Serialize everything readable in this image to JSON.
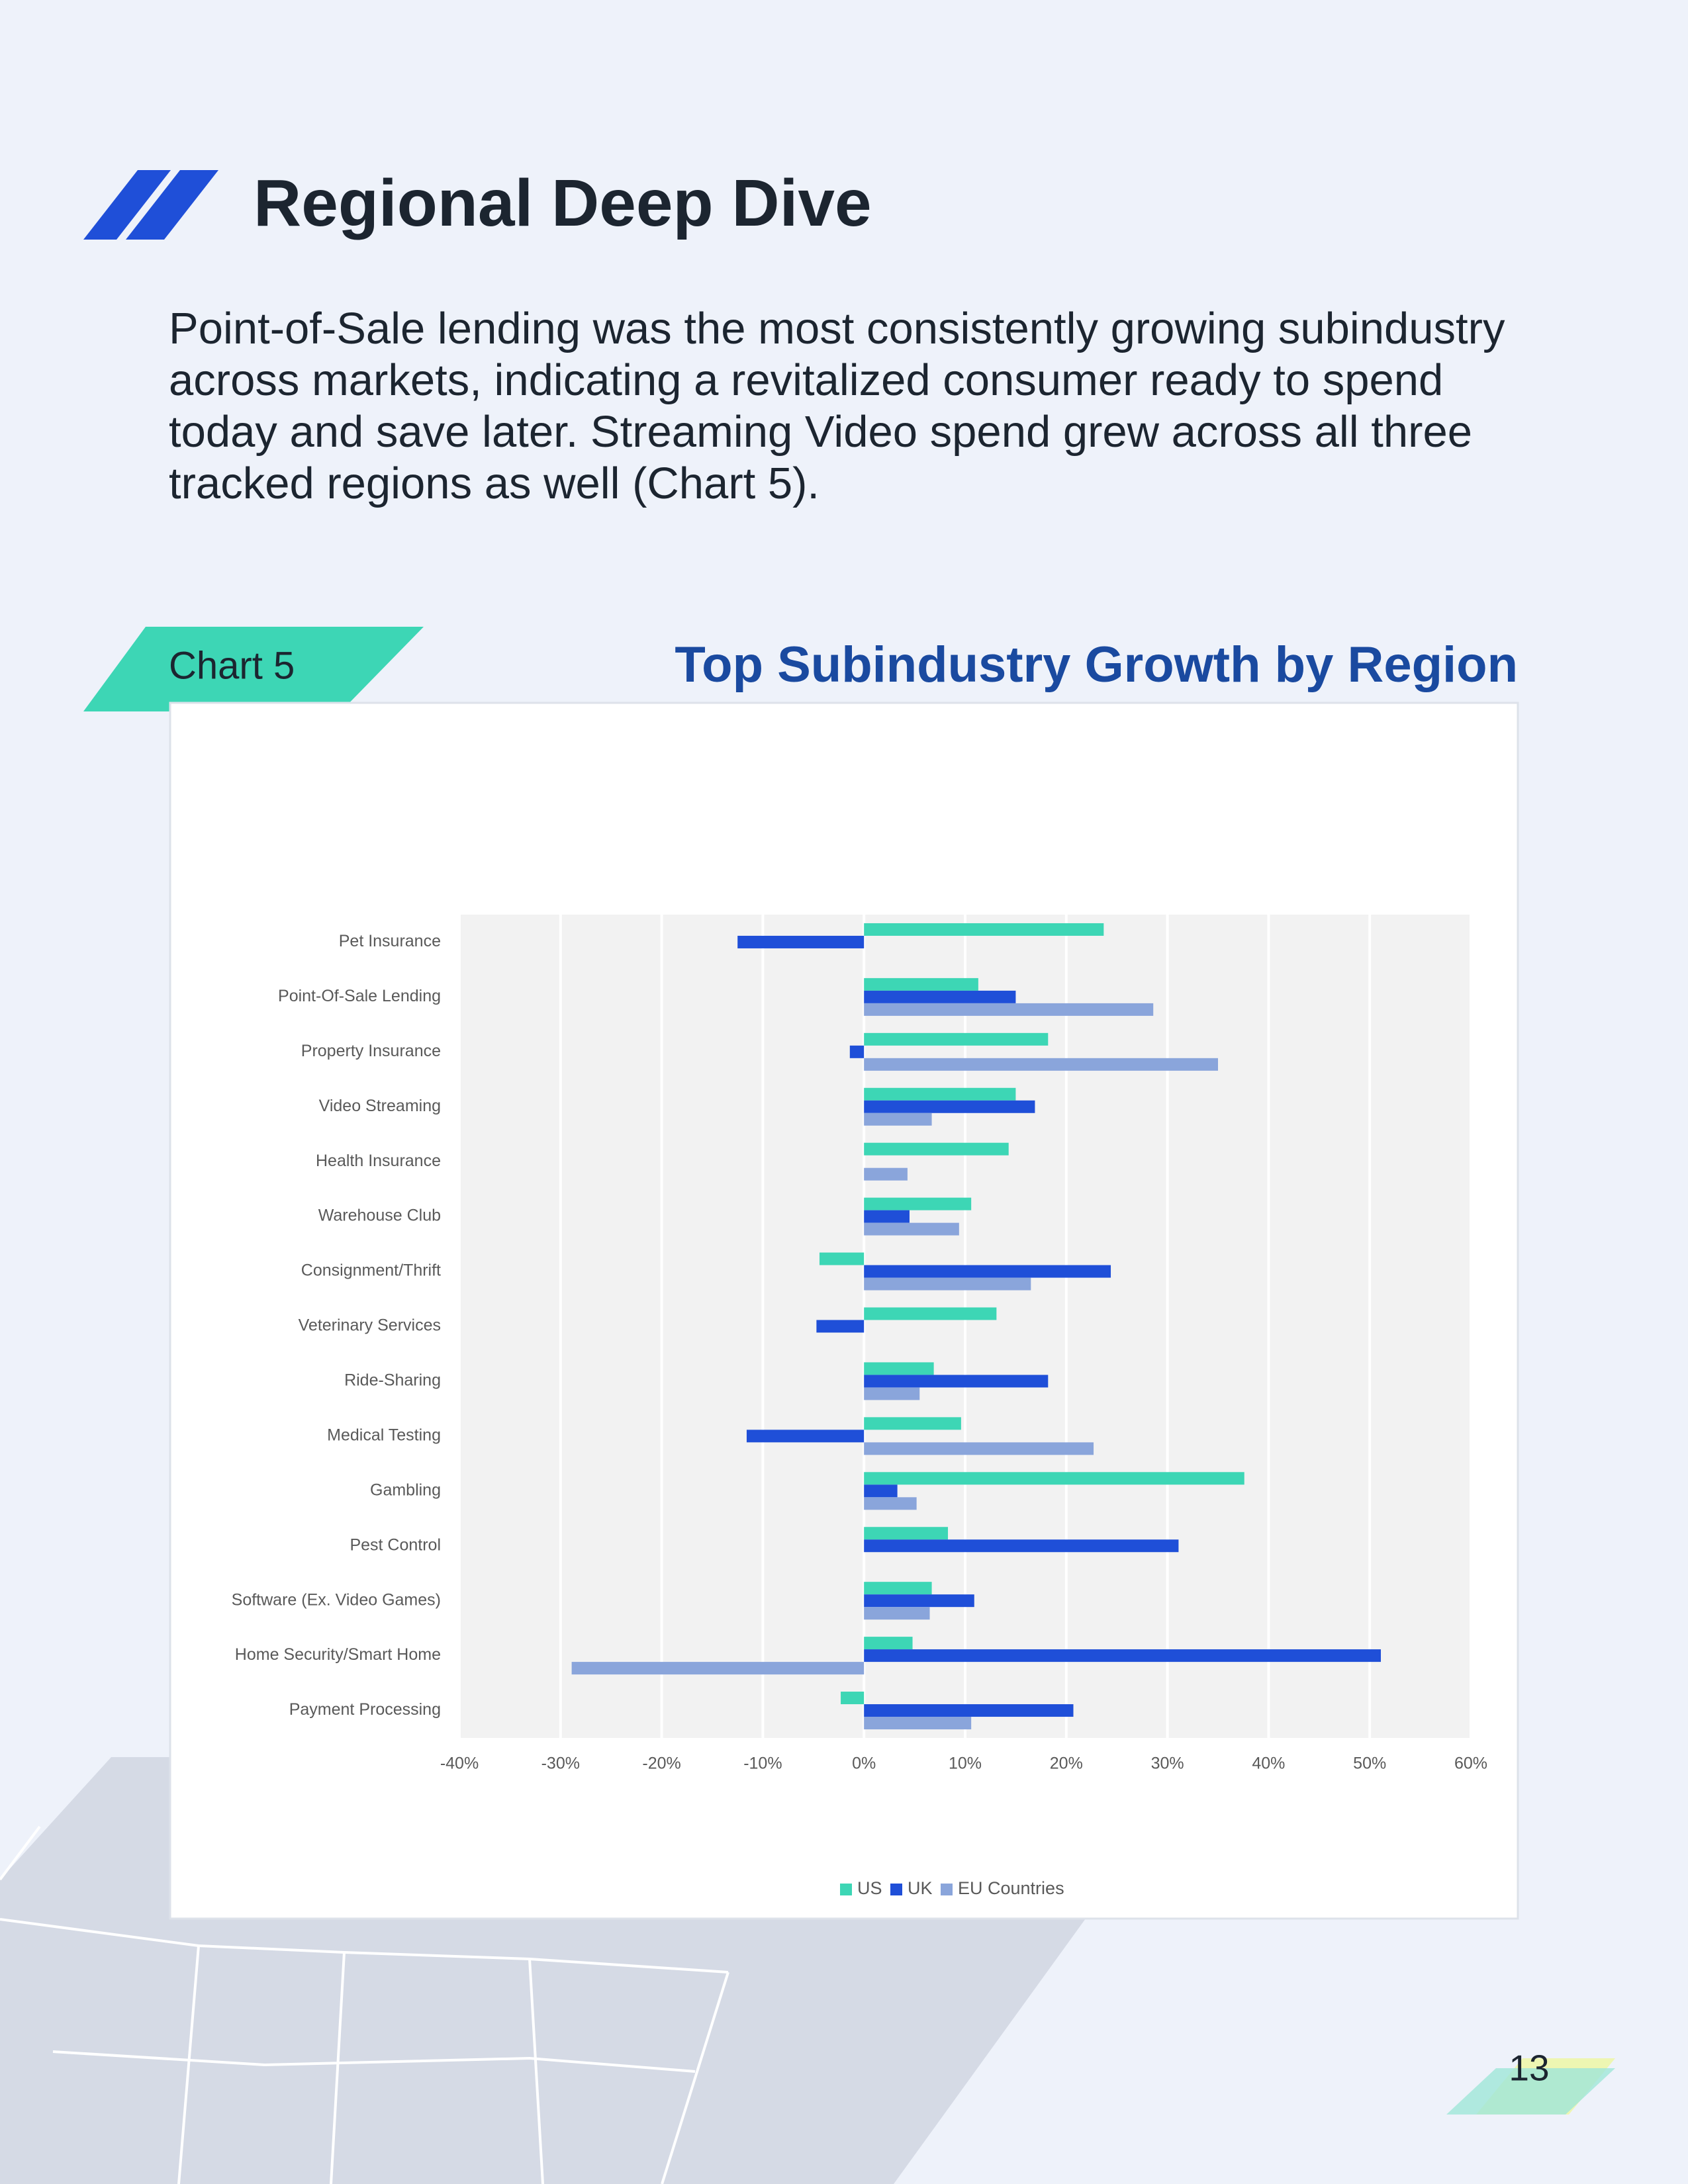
{
  "heading": "Regional Deep Dive",
  "paragraph": "Point-of-Sale lending was the most consistently growing subindustry across markets, indicating a revitalized consumer ready to spend today and save later. Streaming Video spend grew across all three tracked regions as well (Chart 5).",
  "chart_label": "Chart 5",
  "page_number": "13",
  "chart_data": {
    "type": "barh",
    "title": "Top Subindustry Growth by Region",
    "categories": [
      "Pet Insurance",
      "Point-Of-Sale Lending",
      "Property Insurance",
      "Video Streaming",
      "Health Insurance",
      "Warehouse Club",
      "Consignment/Thrift",
      "Veterinary Services",
      "Ride-Sharing",
      "Medical Testing",
      "Gambling",
      "Pest Control",
      "Software (Ex. Video Games)",
      "Home Security/Smart Home",
      "Payment Processing"
    ],
    "series": [
      {
        "name": "US",
        "color": "#3dd6b5",
        "values": [
          23.7,
          11.3,
          18.2,
          15.0,
          14.3,
          10.6,
          -4.4,
          13.1,
          6.9,
          9.6,
          37.6,
          8.3,
          6.7,
          4.8,
          -2.3
        ]
      },
      {
        "name": "UK",
        "color": "#1f4fd8",
        "values": [
          -12.5,
          15.0,
          -1.4,
          16.9,
          null,
          4.5,
          24.4,
          -4.7,
          18.2,
          -11.6,
          3.3,
          31.1,
          10.9,
          51.1,
          20.7
        ]
      },
      {
        "name": "EU Countries",
        "color": "#8aa5db",
        "values": [
          null,
          28.6,
          35.0,
          6.7,
          4.3,
          9.4,
          16.5,
          null,
          5.5,
          22.7,
          5.2,
          null,
          6.5,
          -28.9,
          10.6
        ]
      }
    ],
    "xlim": [
      -40,
      60
    ],
    "xticks": [
      {
        "value": -40,
        "label": "-40%"
      },
      {
        "value": -30,
        "label": "-30%"
      },
      {
        "value": -20,
        "label": "-20%"
      },
      {
        "value": -10,
        "label": "-10%"
      },
      {
        "value": 0,
        "label": "0%"
      },
      {
        "value": 10,
        "label": "10%"
      },
      {
        "value": 20,
        "label": "20%"
      },
      {
        "value": 30,
        "label": "30%"
      },
      {
        "value": 40,
        "label": "40%"
      },
      {
        "value": 50,
        "label": "50%"
      },
      {
        "value": 60,
        "label": "60%"
      }
    ],
    "grid": true,
    "legend": "bottom"
  }
}
